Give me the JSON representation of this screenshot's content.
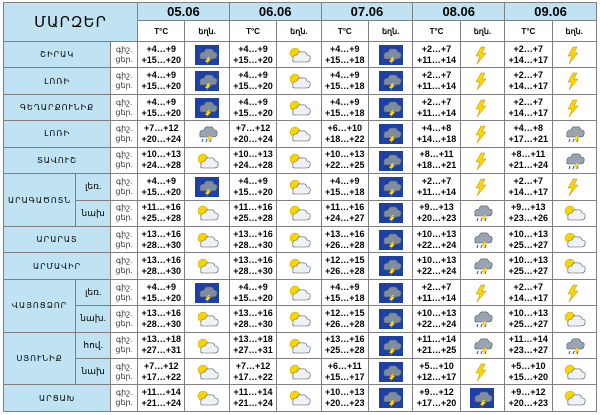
{
  "header": {
    "marz_label": "ՄԱՐԶԵՐ",
    "dates": [
      "05.06",
      "06.06",
      "07.06",
      "08.06",
      "09.06"
    ],
    "temp_label": "T°C",
    "icon_label": "եղն.",
    "day_label": "ցեր.",
    "night_label": "գիշ."
  },
  "colors": {
    "header_bg": "#bfe3f2",
    "sky_blue": "#1d3fa8",
    "sun_yellow": "#f6d400",
    "cloud_gray": "#7f8c9c",
    "lightning": "#ffd400"
  },
  "regions": [
    {
      "name": "ՇԻՐԱԿ",
      "rows": [
        {
          "sub": "",
          "cells": [
            {
              "night": "+4…+9",
              "day": "+15…+20",
              "icon": "thunderstorm-icon"
            },
            {
              "night": "+4…+9",
              "day": "+15…+20",
              "icon": "sun-cloud-icon"
            },
            {
              "night": "+4…+9",
              "day": "+15…+18",
              "icon": "thunderstorm-icon"
            },
            {
              "night": "+2…+7",
              "day": "+11…+14",
              "icon": "lightning-icon"
            },
            {
              "night": "+2…+7",
              "day": "+14…+17",
              "icon": "lightning-icon"
            }
          ]
        }
      ]
    },
    {
      "name": "ԼՈՌԻ",
      "rows": [
        {
          "sub": "",
          "cells": [
            {
              "night": "+4…+9",
              "day": "+15…+20",
              "icon": "thunderstorm-icon"
            },
            {
              "night": "+4…+9",
              "day": "+15…+20",
              "icon": "sun-cloud-icon"
            },
            {
              "night": "+4…+9",
              "day": "+15…+18",
              "icon": "thunderstorm-icon"
            },
            {
              "night": "+2…+7",
              "day": "+11…+14",
              "icon": "lightning-icon"
            },
            {
              "night": "+2…+7",
              "day": "+14…+17",
              "icon": "lightning-icon"
            }
          ]
        }
      ]
    },
    {
      "name": "ԳԵՂԱՐՔՈՒՆԻՔ",
      "rows": [
        {
          "sub": "",
          "cells": [
            {
              "night": "+4…+9",
              "day": "+15…+20",
              "icon": "thunderstorm-icon"
            },
            {
              "night": "+4…+9",
              "day": "+15…+20",
              "icon": "sun-cloud-icon"
            },
            {
              "night": "+4…+9",
              "day": "+15…+18",
              "icon": "thunderstorm-icon"
            },
            {
              "night": "+2…+7",
              "day": "+11…+14",
              "icon": "lightning-icon"
            },
            {
              "night": "+2…+7",
              "day": "+14…+17",
              "icon": "lightning-icon"
            }
          ]
        }
      ]
    },
    {
      "name": "ԼՈՌԻ",
      "rows": [
        {
          "sub": "",
          "cells": [
            {
              "night": "+7…+12",
              "day": "+20…+24",
              "icon": "rain-icon"
            },
            {
              "night": "+7…+12",
              "day": "+20…+24",
              "icon": "sun-cloud-icon"
            },
            {
              "night": "+6…+10",
              "day": "+18…+22",
              "icon": "thunderstorm-icon"
            },
            {
              "night": "+4…+8",
              "day": "+14…+18",
              "icon": "lightning-icon"
            },
            {
              "night": "+4…+8",
              "day": "+17…+21",
              "icon": "rain-icon"
            }
          ]
        }
      ]
    },
    {
      "name": "ՏԱՎՈՒՇ",
      "rows": [
        {
          "sub": "",
          "cells": [
            {
              "night": "+10…+13",
              "day": "+24…+28",
              "icon": "sun-cloud-icon"
            },
            {
              "night": "+10…+13",
              "day": "+24…+28",
              "icon": "sun-cloud-icon"
            },
            {
              "night": "+10…+13",
              "day": "+22…+25",
              "icon": "thunderstorm-icon"
            },
            {
              "night": "+8…+11",
              "day": "+18…+21",
              "icon": "lightning-icon"
            },
            {
              "night": "+8…+11",
              "day": "+21…+24",
              "icon": "rain-icon"
            }
          ]
        }
      ]
    },
    {
      "name": "ԱՐԱԳԱԾՈՏՆ",
      "rows": [
        {
          "sub": "լեռ.",
          "cells": [
            {
              "night": "+4…+9",
              "day": "+15…+20",
              "icon": "thunderstorm-icon"
            },
            {
              "night": "+4…+9",
              "day": "+15…+20",
              "icon": "sun-cloud-icon"
            },
            {
              "night": "+4…+9",
              "day": "+15…+18",
              "icon": "thunderstorm-icon"
            },
            {
              "night": "+2…+7",
              "day": "+11…+14",
              "icon": "lightning-icon"
            },
            {
              "night": "+2…+7",
              "day": "+14…+17",
              "icon": "lightning-icon"
            }
          ]
        },
        {
          "sub": "նախ",
          "cells": [
            {
              "night": "+11…+16",
              "day": "+25…+28",
              "icon": "sun-cloud-icon"
            },
            {
              "night": "+11…+16",
              "day": "+25…+28",
              "icon": "sun-cloud-icon"
            },
            {
              "night": "+11…+16",
              "day": "+24…+27",
              "icon": "thunderstorm-icon"
            },
            {
              "night": "+9…+13",
              "day": "+20…+23",
              "icon": "rain-icon"
            },
            {
              "night": "+9…+13",
              "day": "+23…+26",
              "icon": "sun-cloud-icon"
            }
          ]
        }
      ]
    },
    {
      "name": "ԱՐԱՐԱՏ",
      "rows": [
        {
          "sub": "",
          "cells": [
            {
              "night": "+13…+16",
              "day": "+28…+30",
              "icon": "sun-cloud-icon"
            },
            {
              "night": "+13…+16",
              "day": "+28…+30",
              "icon": "sun-cloud-icon"
            },
            {
              "night": "+13…+16",
              "day": "+26…+28",
              "icon": "thunderstorm-icon"
            },
            {
              "night": "+10…+13",
              "day": "+22…+24",
              "icon": "rain-icon"
            },
            {
              "night": "+10…+13",
              "day": "+25…+27",
              "icon": "sun-cloud-icon"
            }
          ]
        }
      ]
    },
    {
      "name": "ԱՐՄԱՎԻՐ",
      "rows": [
        {
          "sub": "",
          "cells": [
            {
              "night": "+13…+16",
              "day": "+28…+30",
              "icon": "sun-cloud-icon"
            },
            {
              "night": "+13…+16",
              "day": "+28…+30",
              "icon": "sun-cloud-icon"
            },
            {
              "night": "+12…+15",
              "day": "+26…+28",
              "icon": "thunderstorm-icon"
            },
            {
              "night": "+10…+13",
              "day": "+22…+24",
              "icon": "rain-icon"
            },
            {
              "night": "+10…+13",
              "day": "+25…+27",
              "icon": "sun-cloud-icon"
            }
          ]
        }
      ]
    },
    {
      "name": "ՎԱՅՈՑՁՈՐ",
      "rows": [
        {
          "sub": "լեռ.",
          "cells": [
            {
              "night": "+4…+9",
              "day": "+15…+20",
              "icon": "thunderstorm-icon"
            },
            {
              "night": "+4…+9",
              "day": "+15…+20",
              "icon": "sun-cloud-icon"
            },
            {
              "night": "+4…+9",
              "day": "+15…+18",
              "icon": "thunderstorm-icon"
            },
            {
              "night": "+2…+7",
              "day": "+11…+14",
              "icon": "lightning-icon"
            },
            {
              "night": "+2…+7",
              "day": "+14…+17",
              "icon": "lightning-icon"
            }
          ]
        },
        {
          "sub": "նախ.",
          "cells": [
            {
              "night": "+13…+16",
              "day": "+28…+30",
              "icon": "sun-cloud-icon"
            },
            {
              "night": "+13…+16",
              "day": "+28…+30",
              "icon": "sun-cloud-icon"
            },
            {
              "night": "+12…+15",
              "day": "+26…+28",
              "icon": "thunderstorm-icon"
            },
            {
              "night": "+10…+13",
              "day": "+22…+24",
              "icon": "rain-icon"
            },
            {
              "night": "+10…+13",
              "day": "+25…+27",
              "icon": "sun-cloud-icon"
            }
          ]
        }
      ]
    },
    {
      "name": "ՍՅՈՒՆԻՔ",
      "rows": [
        {
          "sub": "հով.",
          "cells": [
            {
              "night": "+13…+18",
              "day": "+27…+31",
              "icon": "sun-cloud-icon"
            },
            {
              "night": "+13…+18",
              "day": "+27…+31",
              "icon": "sun-cloud-icon"
            },
            {
              "night": "+13…+16",
              "day": "+25…+28",
              "icon": "thunderstorm-icon"
            },
            {
              "night": "+11…+14",
              "day": "+21…+25",
              "icon": "rain-icon"
            },
            {
              "night": "+11…+14",
              "day": "+23…+27",
              "icon": "rain-icon"
            }
          ]
        },
        {
          "sub": "նախ",
          "cells": [
            {
              "night": "+7…+12",
              "day": "+17…+22",
              "icon": "sun-cloud-icon"
            },
            {
              "night": "+7…+12",
              "day": "+17…+22",
              "icon": "sun-cloud-icon"
            },
            {
              "night": "+6…+11",
              "day": "+15…+17",
              "icon": "thunderstorm-icon"
            },
            {
              "night": "+5…+10",
              "day": "+12…+17",
              "icon": "lightning-icon"
            },
            {
              "night": "+5…+10",
              "day": "+15…+20",
              "icon": "sun-cloud-icon"
            }
          ]
        }
      ]
    },
    {
      "name": "ԱՐՑԱԽ",
      "rows": [
        {
          "sub": "",
          "cells": [
            {
              "night": "+11…+14",
              "day": "+21…+24",
              "icon": "sun-cloud-icon"
            },
            {
              "night": "+11…+14",
              "day": "+21…+24",
              "icon": "sun-cloud-icon"
            },
            {
              "night": "+10…+13",
              "day": "+20…+23",
              "icon": "thunderstorm-icon"
            },
            {
              "night": "+9…+12",
              "day": "+17…+20",
              "icon": "thunderstorm-icon"
            },
            {
              "night": "+9…+12",
              "day": "+20…+23",
              "icon": "sun-cloud-icon"
            }
          ]
        }
      ]
    }
  ]
}
